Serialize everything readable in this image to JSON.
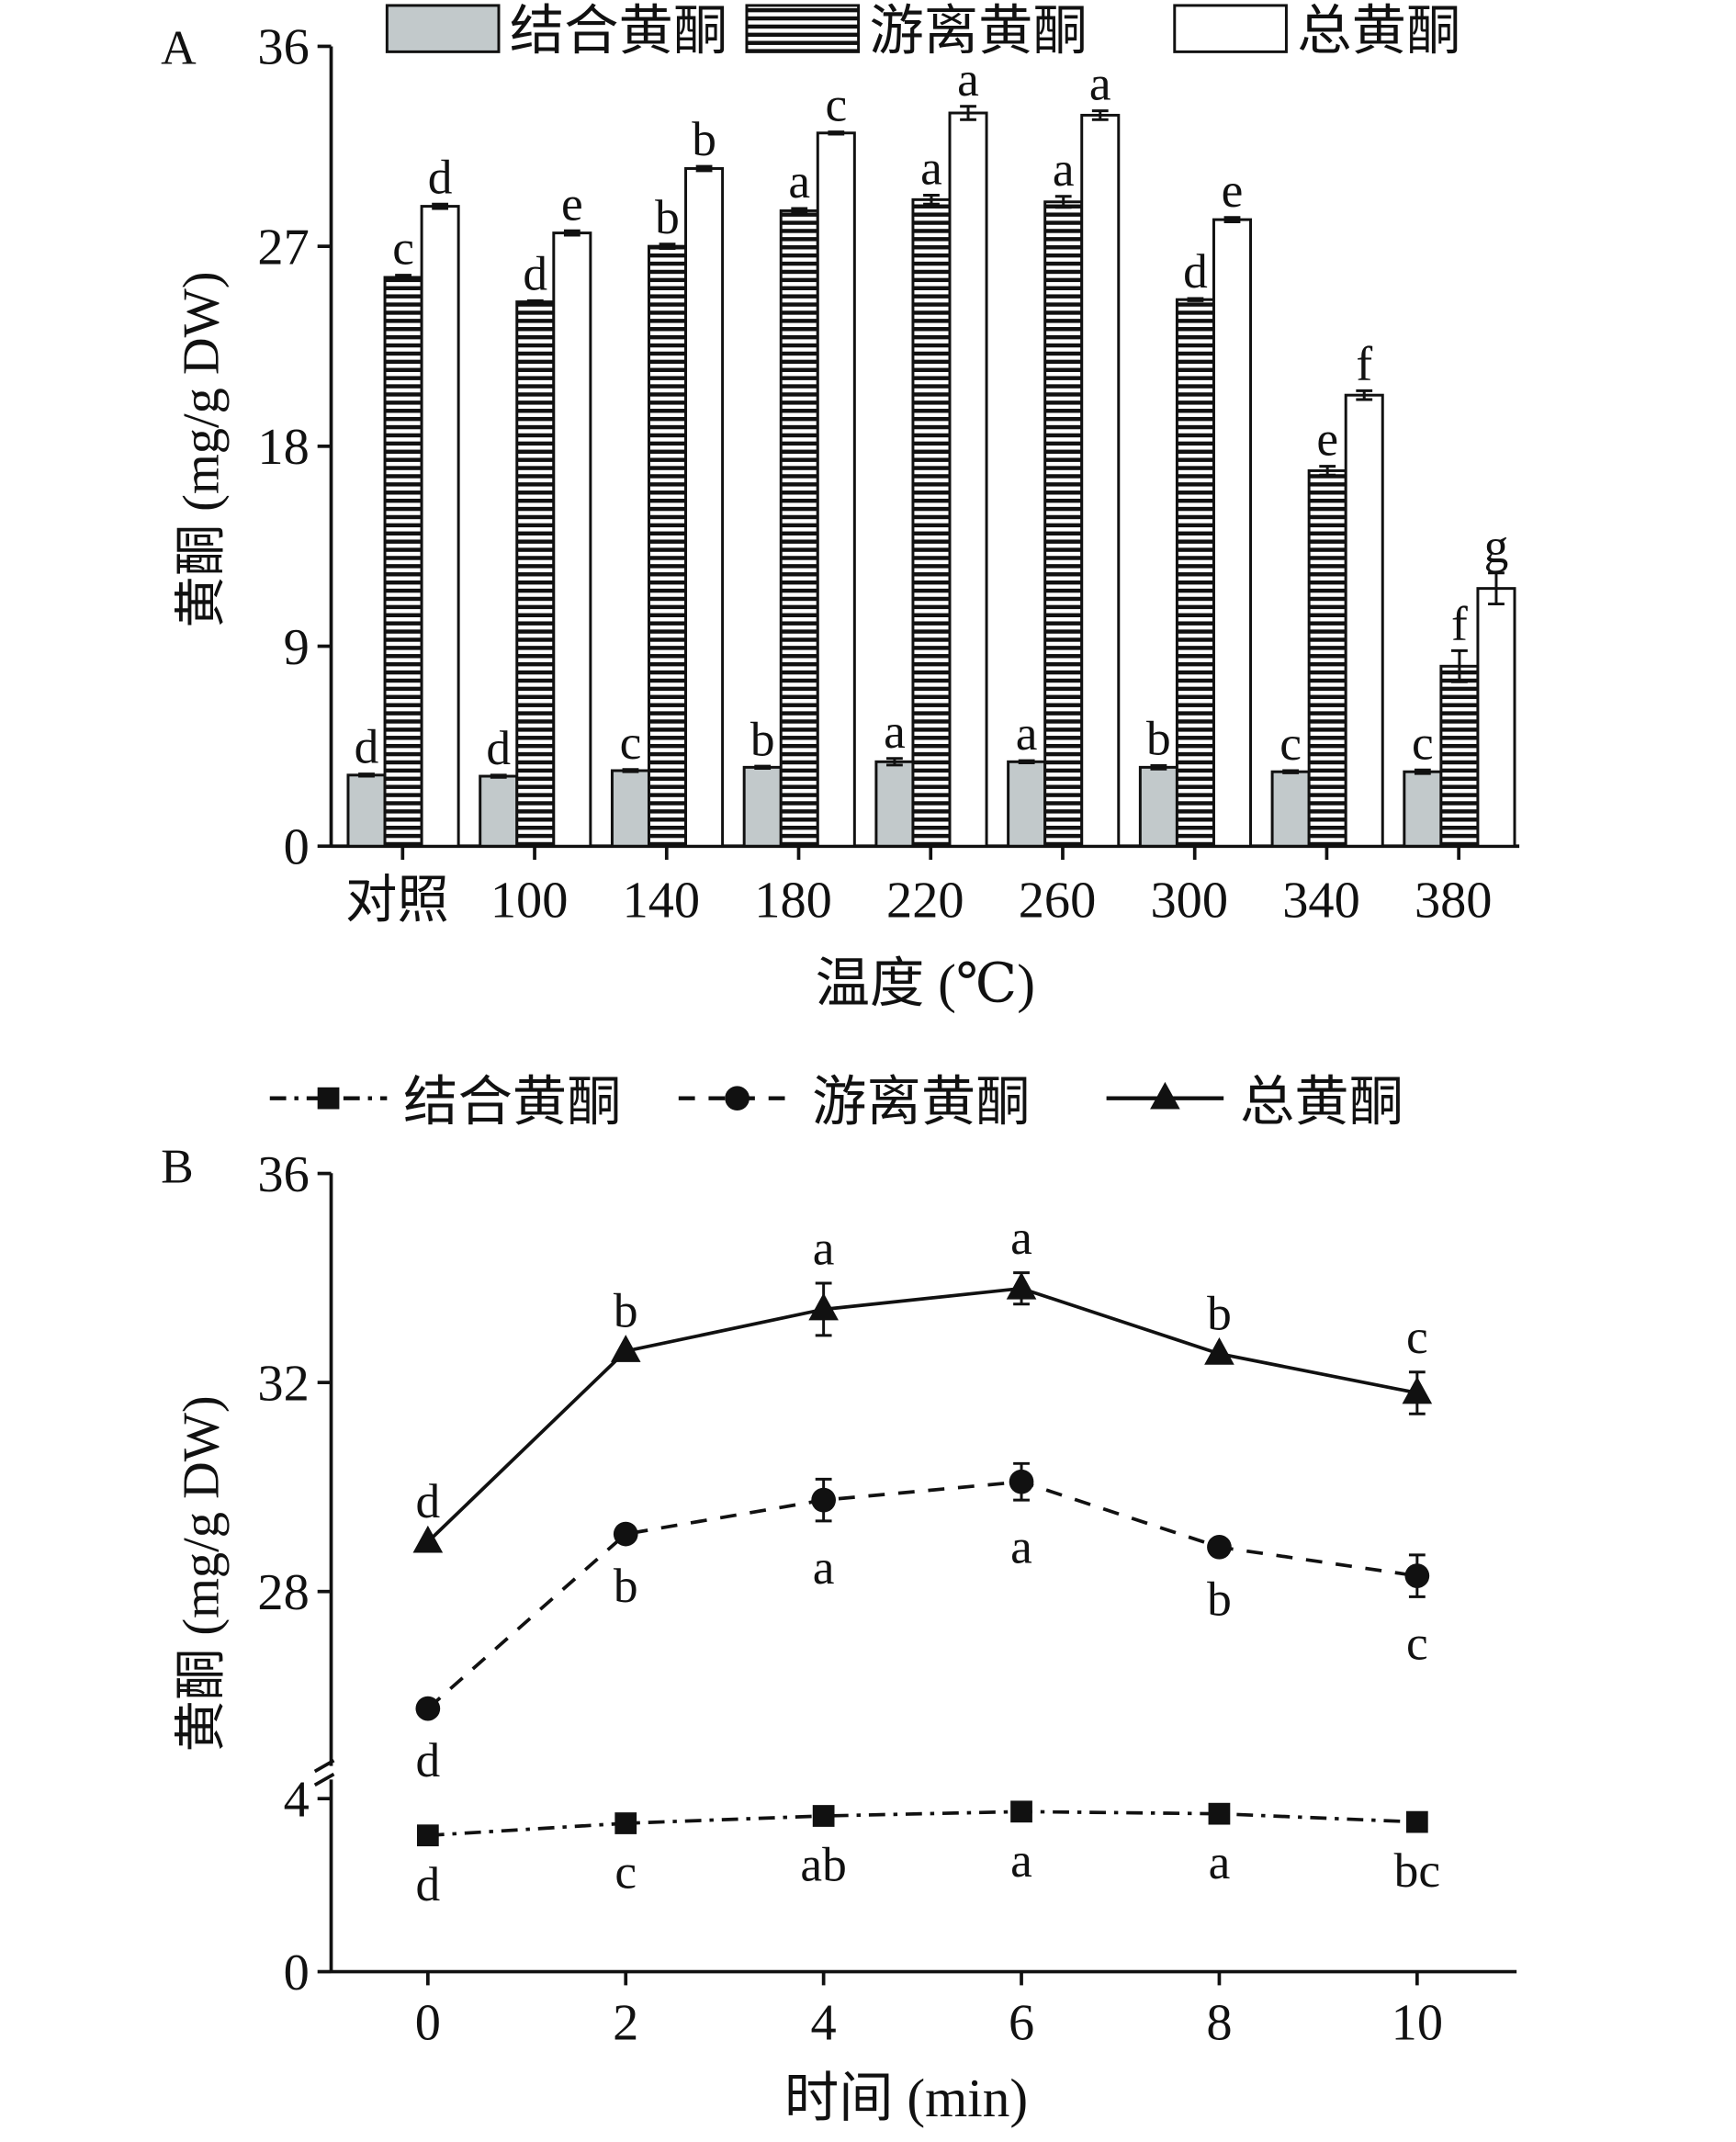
{
  "chart_data": [
    {
      "type": "bar",
      "panel_label": "A",
      "legend": [
        "结合黄酮",
        "游离黄酮",
        "总黄酮"
      ],
      "legend_placement": "top",
      "categories": [
        "对照",
        "100",
        "140",
        "180",
        "220",
        "260",
        "300",
        "340",
        "380"
      ],
      "xlabel": "温度 (℃)",
      "ylabel": "黄酮 (mg/g DW)",
      "ylim": [
        0,
        36
      ],
      "yticks": [
        "0",
        "9",
        "18",
        "27",
        "36"
      ],
      "series": [
        {
          "name": "结合黄酮",
          "values": [
            3.2,
            3.15,
            3.4,
            3.55,
            3.8,
            3.8,
            3.55,
            3.35,
            3.35
          ],
          "errors": [
            0.05,
            0.05,
            0.05,
            0.05,
            0.15,
            0.05,
            0.08,
            0.05,
            0.08
          ],
          "letters": [
            "d",
            "d",
            "c",
            "b",
            "a",
            "a",
            "b",
            "c",
            "c"
          ]
        },
        {
          "name": "游离黄酮",
          "values": [
            25.6,
            24.5,
            27.0,
            28.6,
            29.1,
            29.0,
            24.6,
            16.9,
            8.1
          ],
          "errors": [
            0.1,
            0.05,
            0.1,
            0.1,
            0.2,
            0.25,
            0.05,
            0.2,
            0.7
          ],
          "letters": [
            "c",
            "d",
            "b",
            "a",
            "a",
            "a",
            "d",
            "e",
            "f"
          ]
        },
        {
          "name": "总黄酮",
          "values": [
            28.8,
            27.6,
            30.5,
            32.1,
            33.0,
            32.9,
            28.2,
            20.3,
            11.6
          ],
          "errors": [
            0.1,
            0.1,
            0.1,
            0.05,
            0.3,
            0.2,
            0.1,
            0.2,
            0.7
          ],
          "letters": [
            "d",
            "e",
            "b",
            "c",
            "a",
            "a",
            "e",
            "f",
            "g"
          ]
        }
      ]
    },
    {
      "type": "line",
      "panel_label": "B",
      "legend": [
        "结合黄酮",
        "游离黄酮",
        "总黄酮"
      ],
      "legend_placement": "top",
      "x": [
        0,
        2,
        4,
        6,
        8,
        10
      ],
      "xticks": [
        "0",
        "2",
        "4",
        "6",
        "8",
        "10"
      ],
      "xlabel": "时间 (min)",
      "ylabel": "黄酮 (mg/g DW)",
      "ylim": [
        0,
        36
      ],
      "axis_break": [
        4,
        24
      ],
      "yticks": [
        "0",
        "4",
        "28",
        "32",
        "36"
      ],
      "series": [
        {
          "name": "结合黄酮",
          "marker": "square",
          "line": "dash-dot",
          "values": [
            3.15,
            3.43,
            3.6,
            3.7,
            3.65,
            3.46
          ],
          "errors": [
            0.05,
            0.05,
            0.05,
            0.05,
            0.05,
            0.05
          ],
          "letters": [
            "d",
            "c",
            "ab",
            "a",
            "a",
            "bc"
          ],
          "letter_pos": "below"
        },
        {
          "name": "游离黄酮",
          "marker": "circle",
          "line": "dashed",
          "values": [
            25.76,
            29.1,
            29.75,
            30.1,
            28.85,
            28.3
          ],
          "errors": [
            0.1,
            0.1,
            0.4,
            0.35,
            0.1,
            0.4
          ],
          "letters": [
            "d",
            "b",
            "a",
            "a",
            "b",
            "c"
          ],
          "letter_pos": "below"
        },
        {
          "name": "总黄酮",
          "marker": "triangle",
          "line": "solid",
          "values": [
            28.95,
            32.6,
            33.4,
            33.8,
            32.55,
            31.8
          ],
          "errors": [
            0.1,
            0.1,
            0.5,
            0.3,
            0.1,
            0.4
          ],
          "letters": [
            "d",
            "b",
            "a",
            "a",
            "b",
            "c"
          ],
          "letter_pos": "above"
        }
      ]
    }
  ]
}
